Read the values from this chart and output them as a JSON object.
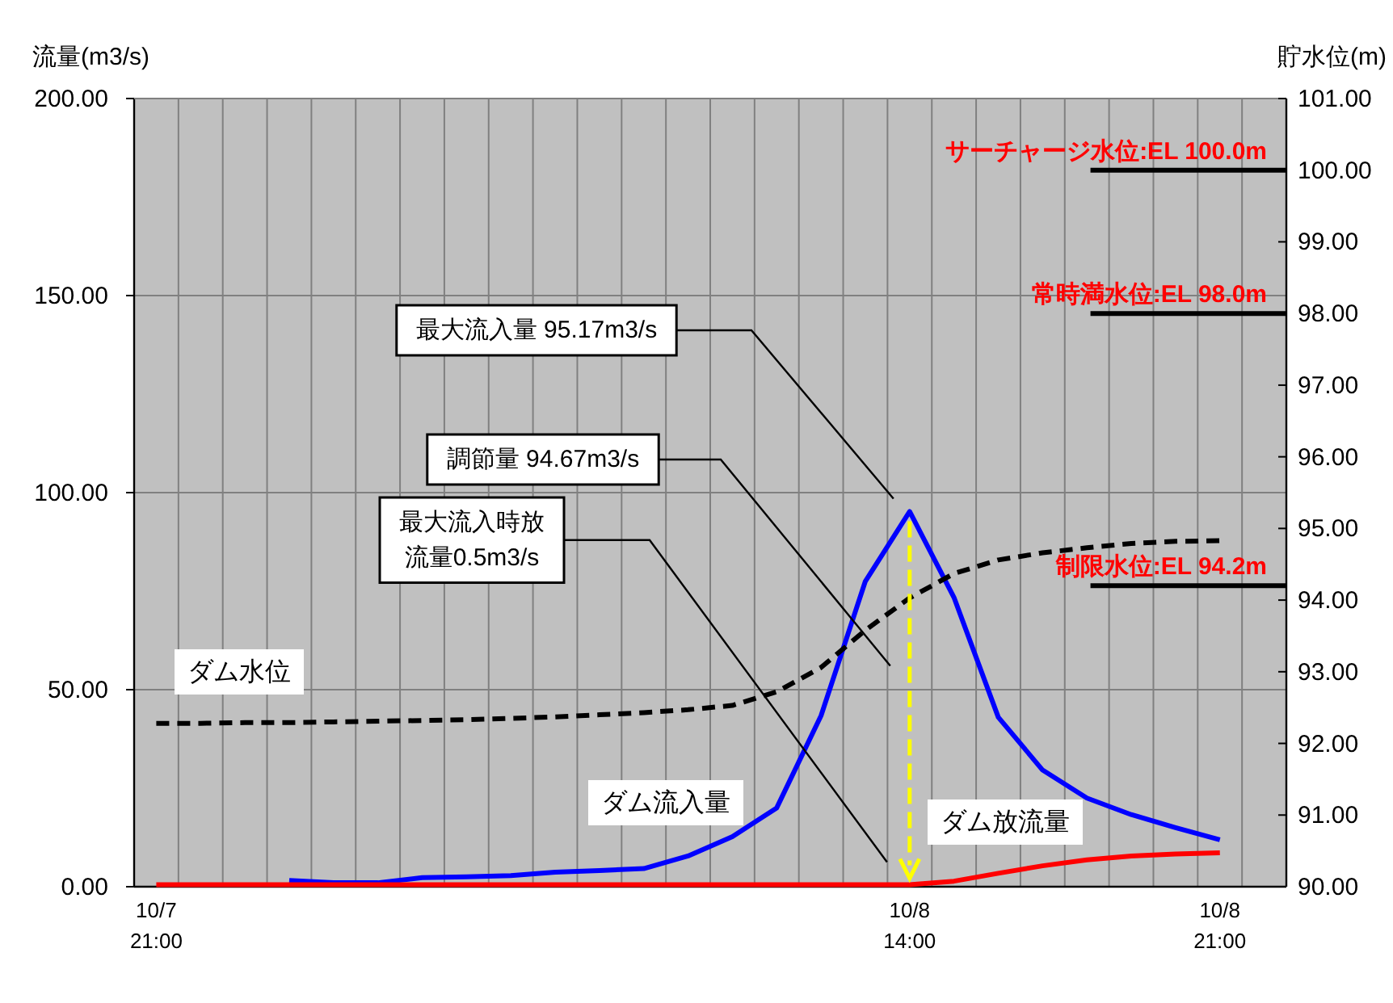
{
  "chart_data": {
    "type": "line",
    "ylabel": "流量(m3/s)",
    "y2label": "貯水位(m)",
    "categories": [
      "10/7 21:00",
      null,
      null,
      null,
      null,
      null,
      null,
      null,
      null,
      null,
      null,
      null,
      null,
      null,
      null,
      null,
      null,
      "10/8 14:00",
      null,
      null,
      null,
      null,
      null,
      null,
      "10/8 21:00",
      null
    ],
    "ylim": [
      0,
      200
    ],
    "yticks": [
      {
        "value": 0,
        "label": "0.00"
      },
      {
        "value": 50,
        "label": "50.00"
      },
      {
        "value": 100,
        "label": "100.00"
      },
      {
        "value": 150,
        "label": "150.00"
      },
      {
        "value": 200,
        "label": "200.00"
      }
    ],
    "y2lim": [
      90,
      101
    ],
    "y2ticks": [
      {
        "value": 90,
        "label": "90.00"
      },
      {
        "value": 91,
        "label": "91.00"
      },
      {
        "value": 92,
        "label": "92.00"
      },
      {
        "value": 93,
        "label": "93.00"
      },
      {
        "value": 94,
        "label": "94.00"
      },
      {
        "value": 95,
        "label": "95.00"
      },
      {
        "value": 96,
        "label": "96.00"
      },
      {
        "value": 97,
        "label": "97.00"
      },
      {
        "value": 98,
        "label": "98.00"
      },
      {
        "value": 99,
        "label": "99.00"
      },
      {
        "value": 100,
        "label": "100.00"
      },
      {
        "value": 101,
        "label": "101.00"
      }
    ],
    "grid": true,
    "legend": false,
    "marker": "none",
    "series": [
      {
        "name": "ダム流入量",
        "color": "#0000ff",
        "line_style": "solid",
        "values": [
          null,
          null,
          null,
          1.6,
          1.0,
          1.0,
          2.3,
          2.5,
          2.8,
          3.7,
          4.1,
          4.6,
          7.8,
          12.7,
          20.0,
          43.4,
          77.5,
          95.2,
          73.4,
          43.0,
          29.6,
          22.5,
          18.3,
          15.0,
          11.9,
          null
        ]
      },
      {
        "name": "ダム放流量",
        "color": "#ff0000",
        "line_style": "solid",
        "values": [
          0.5,
          0.5,
          0.5,
          0.5,
          0.5,
          0.5,
          0.5,
          0.5,
          0.5,
          0.5,
          0.5,
          0.5,
          0.5,
          0.5,
          0.5,
          0.5,
          0.5,
          0.5,
          1.4,
          3.4,
          5.3,
          6.8,
          7.8,
          8.3,
          8.6,
          null
        ]
      },
      {
        "name": "ダム水位",
        "color": "#000000",
        "axis": "y2",
        "line_style": "dashed",
        "values": [
          92.28,
          92.28,
          92.29,
          92.29,
          92.3,
          92.31,
          92.32,
          92.33,
          92.35,
          92.37,
          92.4,
          92.43,
          92.47,
          92.53,
          92.72,
          93.06,
          93.58,
          94.03,
          94.37,
          94.56,
          94.66,
          94.73,
          94.79,
          94.82,
          94.83,
          null
        ]
      }
    ],
    "ref_lines": [
      {
        "axis": "y2",
        "value": 100,
        "label": "サーチャージ水位:EL  100.0m",
        "color": "#000000"
      },
      {
        "axis": "y2",
        "value": 98,
        "label": "常時満水位:EL  98.0m",
        "color": "#000000"
      },
      {
        "axis": "y2",
        "value": 94.2,
        "label": "制限水位:EL  94.2m",
        "color": "#000000"
      }
    ],
    "annotations": [
      "最大流入量  95.17m3/s",
      "調節量  94.67m3/s",
      "最大流入時放流量0.5m3/s"
    ]
  }
}
